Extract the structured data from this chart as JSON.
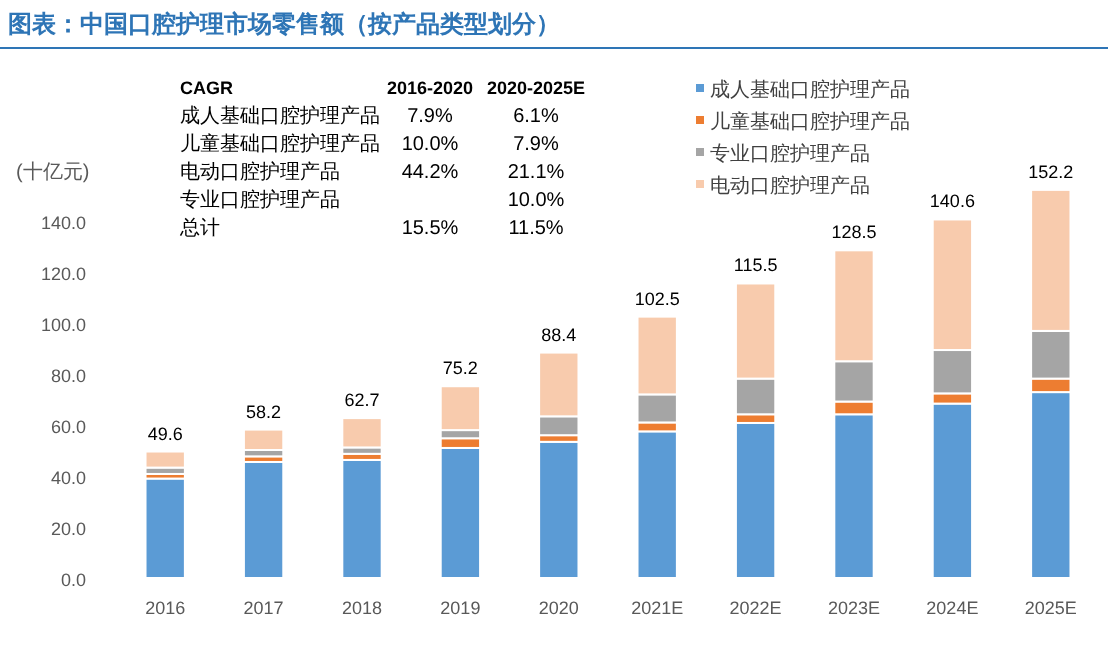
{
  "chart_data": {
    "type": "bar",
    "stacked": true,
    "title": "图表：中国口腔护理市场零售额（按产品类型划分）",
    "ylabel": "(十亿元)",
    "categories": [
      "2016",
      "2017",
      "2018",
      "2019",
      "2020",
      "2021E",
      "2022E",
      "2023E",
      "2024E",
      "2025E"
    ],
    "series": [
      {
        "name": "成人基础口腔护理产品",
        "color": "#5b9bd5",
        "values": [
          39.0,
          45.5,
          46.3,
          51.0,
          53.4,
          57.5,
          60.8,
          64.2,
          68.4,
          72.9
        ]
      },
      {
        "name": "儿童基础口腔护理产品",
        "color": "#ed7d31",
        "values": [
          1.8,
          2.2,
          2.4,
          3.8,
          2.6,
          3.5,
          3.4,
          5.0,
          4.0,
          5.3
        ]
      },
      {
        "name": "专业口腔护理产品",
        "color": "#a5a5a5",
        "values": [
          2.5,
          2.5,
          2.5,
          3.2,
          7.4,
          11.0,
          14.0,
          15.8,
          17.0,
          18.7
        ]
      },
      {
        "name": "电动口腔护理产品",
        "color": "#f8cbad",
        "values": [
          6.3,
          8.0,
          11.5,
          17.2,
          25.0,
          30.5,
          37.3,
          43.5,
          51.2,
          55.3
        ]
      }
    ],
    "totals": [
      "49.6",
      "58.2",
      "62.7",
      "75.2",
      "88.4",
      "102.5",
      "115.5",
      "128.5",
      "140.6",
      "152.2"
    ],
    "ylim": [
      0,
      160
    ],
    "yticks": [
      {
        "value": 0,
        "label": "0.0"
      },
      {
        "value": 20,
        "label": "20.0"
      },
      {
        "value": 40,
        "label": "40.0"
      },
      {
        "value": 60,
        "label": "60.0"
      },
      {
        "value": 80,
        "label": "80.0"
      },
      {
        "value": 100,
        "label": "100.0"
      },
      {
        "value": 120,
        "label": "120.0"
      },
      {
        "value": 140,
        "label": "140.0"
      }
    ],
    "grid": false,
    "legend": "top right",
    "annotations": [
      "CAGR",
      "2016-2020",
      "2020-2025E",
      "成人基础口腔护理产品",
      "7.9%",
      "6.1%",
      "儿童基础口腔护理产品",
      "10.0%",
      "7.9%",
      "电动口腔护理产品",
      "44.2%",
      "21.1%",
      "专业口腔护理产品",
      null,
      "10.0%",
      "总计",
      "15.5%",
      "11.5%"
    ]
  }
}
